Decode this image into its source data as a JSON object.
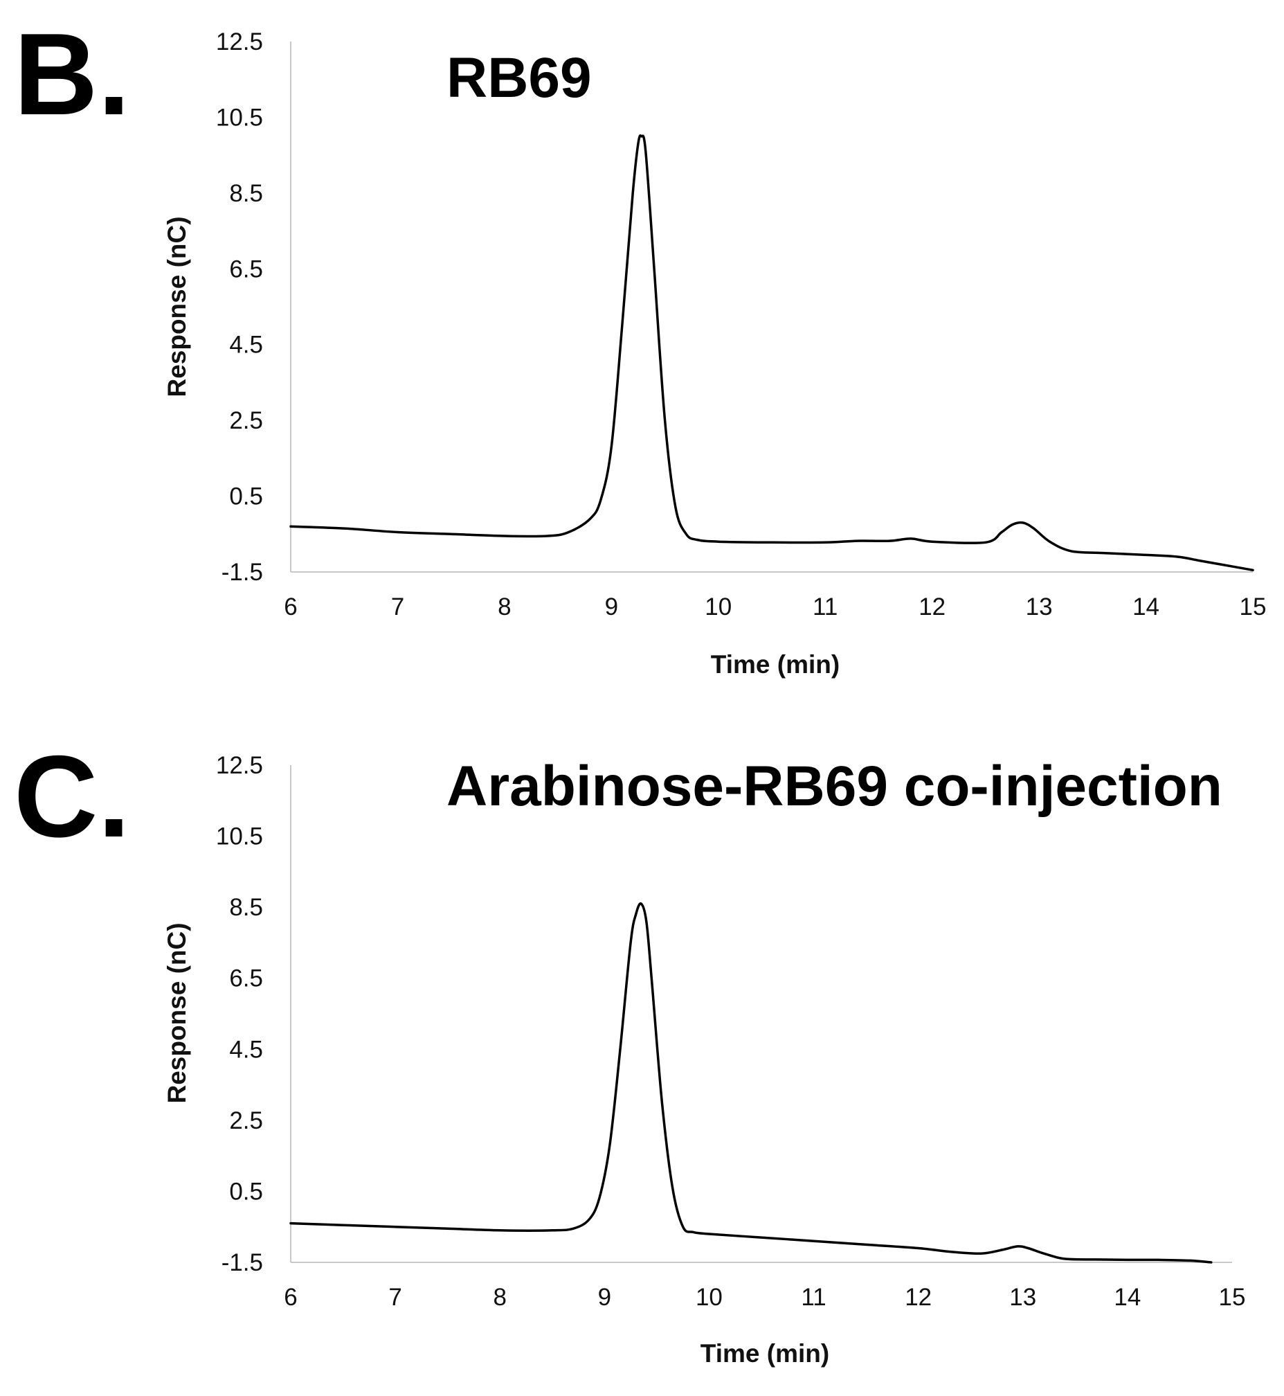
{
  "chart_data": [
    {
      "type": "line",
      "panel_label": "B.",
      "title": "RB69",
      "xlabel": "Time (min)",
      "ylabel": "Response (nC)",
      "xlim": [
        6,
        15
      ],
      "ylim": [
        -1.5,
        12.5
      ],
      "x_ticks": [
        6,
        7,
        8,
        9,
        10,
        11,
        12,
        13,
        14,
        15
      ],
      "y_ticks": [
        -1.5,
        0.5,
        2.5,
        4.5,
        6.5,
        8.5,
        10.5,
        12.5
      ],
      "x_tick_labels": [
        "6",
        "7",
        "8",
        "9",
        "10",
        "11",
        "12",
        "13",
        "14",
        "15"
      ],
      "y_tick_labels": [
        "-1.5",
        "0.5",
        "2.5",
        "4.5",
        "6.5",
        "8.5",
        "10.5",
        "12.5"
      ],
      "grid": false,
      "series": [
        {
          "name": "RB69",
          "x": [
            6.0,
            6.5,
            7.0,
            7.5,
            8.0,
            8.4,
            8.6,
            8.8,
            8.9,
            9.0,
            9.1,
            9.2,
            9.25,
            9.28,
            9.32,
            9.4,
            9.5,
            9.6,
            9.7,
            9.8,
            10.0,
            10.5,
            11.0,
            11.3,
            11.6,
            11.8,
            12.0,
            12.5,
            12.65,
            12.75,
            12.85,
            12.95,
            13.1,
            13.3,
            13.6,
            14.0,
            14.3,
            14.5,
            14.8,
            15.0
          ],
          "y": [
            -0.3,
            -0.35,
            -0.45,
            -0.5,
            -0.55,
            -0.55,
            -0.45,
            -0.1,
            0.4,
            1.8,
            5.0,
            8.5,
            9.8,
            10.0,
            9.6,
            6.5,
            2.5,
            0.2,
            -0.5,
            -0.65,
            -0.7,
            -0.72,
            -0.72,
            -0.68,
            -0.68,
            -0.62,
            -0.7,
            -0.72,
            -0.45,
            -0.25,
            -0.2,
            -0.35,
            -0.7,
            -0.95,
            -1.0,
            -1.05,
            -1.1,
            -1.2,
            -1.35,
            -1.45
          ]
        }
      ]
    },
    {
      "type": "line",
      "panel_label": "C.",
      "title": "Arabinose-RB69 co-injection",
      "xlabel": "Time (min)",
      "ylabel": "Response (nC)",
      "xlim": [
        6,
        15
      ],
      "ylim": [
        -1.5,
        12.5
      ],
      "x_ticks": [
        6,
        7,
        8,
        9,
        10,
        11,
        12,
        13,
        14,
        15
      ],
      "y_ticks": [
        -1.5,
        0.5,
        2.5,
        4.5,
        6.5,
        8.5,
        10.5,
        12.5
      ],
      "x_tick_labels": [
        "6",
        "7",
        "8",
        "9",
        "10",
        "11",
        "12",
        "13",
        "14",
        "15"
      ],
      "y_tick_labels": [
        "-1.5",
        "0.5",
        "2.5",
        "4.5",
        "6.5",
        "8.5",
        "10.5",
        "12.5"
      ],
      "grid": false,
      "series": [
        {
          "name": "Arabinose-RB69 co-injection",
          "x": [
            6.0,
            6.5,
            7.0,
            7.5,
            8.0,
            8.5,
            8.7,
            8.85,
            8.95,
            9.05,
            9.15,
            9.25,
            9.3,
            9.35,
            9.4,
            9.45,
            9.55,
            9.65,
            9.75,
            9.85,
            10.0,
            10.5,
            11.0,
            11.5,
            12.0,
            12.3,
            12.6,
            12.8,
            12.95,
            13.05,
            13.2,
            13.4,
            13.7,
            14.0,
            14.3,
            14.6,
            14.8
          ],
          "y": [
            -0.4,
            -0.45,
            -0.5,
            -0.55,
            -0.6,
            -0.6,
            -0.55,
            -0.3,
            0.3,
            1.8,
            4.5,
            7.5,
            8.3,
            8.6,
            8.1,
            6.5,
            3.0,
            0.6,
            -0.5,
            -0.65,
            -0.7,
            -0.8,
            -0.9,
            -1.0,
            -1.1,
            -1.2,
            -1.25,
            -1.15,
            -1.05,
            -1.1,
            -1.25,
            -1.4,
            -1.42,
            -1.43,
            -1.43,
            -1.45,
            -1.5
          ]
        }
      ]
    }
  ]
}
